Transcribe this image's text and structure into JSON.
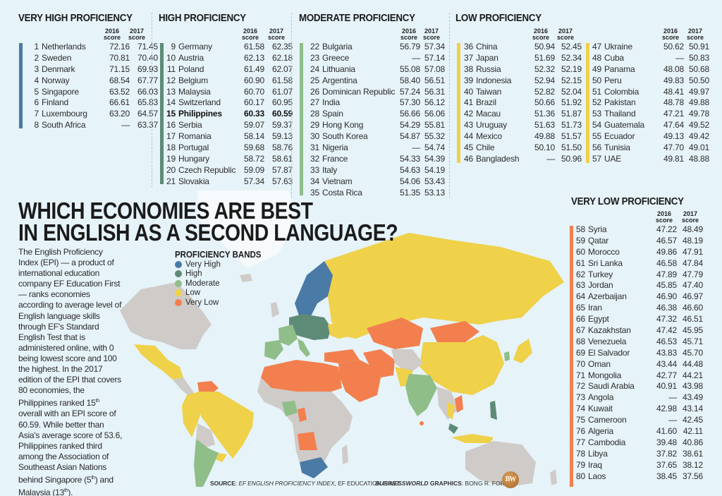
{
  "headline": {
    "line1": "WHICH ECONOMIES ARE BEST",
    "line2": "IN ENGLISH AS A SECOND LANGUAGE?"
  },
  "intro": {
    "p1": "The English Proficiency Index (EPI) — a product of international education company EF Education First — ranks economies according to average level of English language skills through EF's Standard English Test that is administered online, with 0 being lowest score and 100 the highest. In the 2017 edition of the EPI that covers 80 economies, the Philippines ranked 15",
    "sup1": "th",
    "p2": " overall with an EPI score of 60.59. While better than Asia's average score of 53.6, Philippines ranked third among the Association of Southeast Asian Nations behind Singapore (5",
    "sup2": "th",
    "p3": ") and Malaysia (13",
    "sup3": "th",
    "p4": ")."
  },
  "column_headers": {
    "y2016": "2016",
    "y2017": "2017",
    "score": "score"
  },
  "legend": {
    "title": "PROFICIENCY BANDS",
    "items": [
      {
        "label": "Very High",
        "color": "#4a7aa6"
      },
      {
        "label": "High",
        "color": "#5e8b77"
      },
      {
        "label": "Moderate",
        "color": "#8fbe88"
      },
      {
        "label": "Low",
        "color": "#efd14a"
      },
      {
        "label": "Very Low",
        "color": "#f37f4f"
      }
    ]
  },
  "colors": {
    "background": "#e6f3f9",
    "very_high": "#4a7aa6",
    "high": "#5e8b77",
    "moderate": "#8fbe88",
    "low": "#efd14a",
    "very_low": "#f37f4f",
    "no_data": "#cfcbc8"
  },
  "tiers": {
    "very_high": {
      "title": "VERY HIGH PROFICIENCY",
      "rows": [
        {
          "rank": "1",
          "name": "Netherlands",
          "s2016": "72.16",
          "s2017": "71.45"
        },
        {
          "rank": "2",
          "name": "Sweden",
          "s2016": "70.81",
          "s2017": "70.40"
        },
        {
          "rank": "3",
          "name": "Denmark",
          "s2016": "71.15",
          "s2017": "69.93"
        },
        {
          "rank": "4",
          "name": "Norway",
          "s2016": "68.54",
          "s2017": "67.77"
        },
        {
          "rank": "5",
          "name": "Singapore",
          "s2016": "63.52",
          "s2017": "66.03"
        },
        {
          "rank": "6",
          "name": "Finland",
          "s2016": "66.61",
          "s2017": "65.83"
        },
        {
          "rank": "7",
          "name": "Luxembourg",
          "s2016": "63.20",
          "s2017": "64.57"
        },
        {
          "rank": "8",
          "name": "South Africa",
          "s2016": "—",
          "s2017": "63.37"
        }
      ]
    },
    "high": {
      "title": "HIGH PROFICIENCY",
      "rows": [
        {
          "rank": "9",
          "name": "Germany",
          "s2016": "61.58",
          "s2017": "62.35"
        },
        {
          "rank": "10",
          "name": "Austria",
          "s2016": "62.13",
          "s2017": "62.18"
        },
        {
          "rank": "11",
          "name": "Poland",
          "s2016": "61.49",
          "s2017": "62.07"
        },
        {
          "rank": "12",
          "name": "Belgium",
          "s2016": "60.90",
          "s2017": "61.58"
        },
        {
          "rank": "13",
          "name": "Malaysia",
          "s2016": "60.70",
          "s2017": "61.07"
        },
        {
          "rank": "14",
          "name": "Switzerland",
          "s2016": "60.17",
          "s2017": "60.95"
        },
        {
          "rank": "15",
          "name": "Philippines",
          "s2016": "60.33",
          "s2017": "60.59",
          "highlight": true
        },
        {
          "rank": "16",
          "name": "Serbia",
          "s2016": "59.07",
          "s2017": "59.37"
        },
        {
          "rank": "17",
          "name": "Romania",
          "s2016": "58.14",
          "s2017": "59.13"
        },
        {
          "rank": "18",
          "name": "Portugal",
          "s2016": "59.68",
          "s2017": "58.76"
        },
        {
          "rank": "19",
          "name": "Hungary",
          "s2016": "58.72",
          "s2017": "58.61"
        },
        {
          "rank": "20",
          "name": "Czech Republic",
          "s2016": "59.09",
          "s2017": "57.87"
        },
        {
          "rank": "21",
          "name": "Slovakia",
          "s2016": "57.34",
          "s2017": "57.63"
        }
      ]
    },
    "moderate": {
      "title": "MODERATE PROFICIENCY",
      "rows": [
        {
          "rank": "22",
          "name": "Bulgaria",
          "s2016": "56.79",
          "s2017": "57.34"
        },
        {
          "rank": "23",
          "name": "Greece",
          "s2016": "—",
          "s2017": "57.14"
        },
        {
          "rank": "24",
          "name": "Lithuania",
          "s2016": "55.08",
          "s2017": "57.08"
        },
        {
          "rank": "25",
          "name": "Argentina",
          "s2016": "58.40",
          "s2017": "56.51"
        },
        {
          "rank": "26",
          "name": "Dominican Republic",
          "s2016": "57.24",
          "s2017": "56.31"
        },
        {
          "rank": "27",
          "name": "India",
          "s2016": "57.30",
          "s2017": "56.12"
        },
        {
          "rank": "28",
          "name": "Spain",
          "s2016": "56.66",
          "s2017": "56.06"
        },
        {
          "rank": "29",
          "name": "Hong Kong",
          "s2016": "54.29",
          "s2017": "55.81"
        },
        {
          "rank": "30",
          "name": "South Korea",
          "s2016": "54.87",
          "s2017": "55.32"
        },
        {
          "rank": "31",
          "name": "Nigeria",
          "s2016": "—",
          "s2017": "54.74"
        },
        {
          "rank": "32",
          "name": "France",
          "s2016": "54.33",
          "s2017": "54.39"
        },
        {
          "rank": "33",
          "name": "Italy",
          "s2016": "54.63",
          "s2017": "54.19"
        },
        {
          "rank": "34",
          "name": "Vietnam",
          "s2016": "54.06",
          "s2017": "53.43"
        },
        {
          "rank": "35",
          "name": "Costa Rica",
          "s2016": "51.35",
          "s2017": "53.13"
        }
      ]
    },
    "low": {
      "title": "LOW PROFICIENCY",
      "rows_a": [
        {
          "rank": "36",
          "name": "China",
          "s2016": "50.94",
          "s2017": "52.45"
        },
        {
          "rank": "37",
          "name": "Japan",
          "s2016": "51.69",
          "s2017": "52.34"
        },
        {
          "rank": "38",
          "name": "Russia",
          "s2016": "52.32",
          "s2017": "52.19"
        },
        {
          "rank": "39",
          "name": "Indonesia",
          "s2016": "52.94",
          "s2017": "52.15"
        },
        {
          "rank": "40",
          "name": "Taiwan",
          "s2016": "52.82",
          "s2017": "52.04"
        },
        {
          "rank": "41",
          "name": "Brazil",
          "s2016": "50.66",
          "s2017": "51.92"
        },
        {
          "rank": "42",
          "name": "Macau",
          "s2016": "51.36",
          "s2017": "51.87"
        },
        {
          "rank": "43",
          "name": "Uruguay",
          "s2016": "51.63",
          "s2017": "51.73"
        },
        {
          "rank": "44",
          "name": "Mexico",
          "s2016": "49.88",
          "s2017": "51.57"
        },
        {
          "rank": "45",
          "name": "Chile",
          "s2016": "50.10",
          "s2017": "51.50"
        },
        {
          "rank": "46",
          "name": "Bangladesh",
          "s2016": "—",
          "s2017": "50.96"
        }
      ],
      "rows_b": [
        {
          "rank": "47",
          "name": "Ukraine",
          "s2016": "50.62",
          "s2017": "50.91"
        },
        {
          "rank": "48",
          "name": "Cuba",
          "s2016": "—",
          "s2017": "50.83"
        },
        {
          "rank": "49",
          "name": "Panama",
          "s2016": "48.08",
          "s2017": "50.68"
        },
        {
          "rank": "50",
          "name": "Peru",
          "s2016": "49.83",
          "s2017": "50.50"
        },
        {
          "rank": "51",
          "name": "Colombia",
          "s2016": "48.41",
          "s2017": "49.97"
        },
        {
          "rank": "52",
          "name": "Pakistan",
          "s2016": "48.78",
          "s2017": "49.88"
        },
        {
          "rank": "53",
          "name": "Thailand",
          "s2016": "47.21",
          "s2017": "49.78"
        },
        {
          "rank": "54",
          "name": "Guatemala",
          "s2016": "47.64",
          "s2017": "49.52"
        },
        {
          "rank": "55",
          "name": "Ecuador",
          "s2016": "49.13",
          "s2017": "49.42"
        },
        {
          "rank": "56",
          "name": "Tunisia",
          "s2016": "47.70",
          "s2017": "49.01"
        },
        {
          "rank": "57",
          "name": "UAE",
          "s2016": "49.81",
          "s2017": "48.88"
        }
      ]
    },
    "very_low": {
      "title": "VERY LOW PROFICIENCY",
      "rows": [
        {
          "rank": "58",
          "name": "Syria",
          "s2016": "47.22",
          "s2017": "48.49"
        },
        {
          "rank": "59",
          "name": "Qatar",
          "s2016": "46.57",
          "s2017": "48.19"
        },
        {
          "rank": "60",
          "name": "Morocco",
          "s2016": "49.86",
          "s2017": "47.91"
        },
        {
          "rank": "61",
          "name": "Sri Lanka",
          "s2016": "46.58",
          "s2017": "47.84"
        },
        {
          "rank": "62",
          "name": "Turkey",
          "s2016": "47.89",
          "s2017": "47.79"
        },
        {
          "rank": "63",
          "name": "Jordan",
          "s2016": "45.85",
          "s2017": "47.40"
        },
        {
          "rank": "64",
          "name": "Azerbaijan",
          "s2016": "46.90",
          "s2017": "46.97"
        },
        {
          "rank": "65",
          "name": "Iran",
          "s2016": "46.38",
          "s2017": "46.60"
        },
        {
          "rank": "66",
          "name": "Egypt",
          "s2016": "47.32",
          "s2017": "46.51"
        },
        {
          "rank": "67",
          "name": "Kazakhstan",
          "s2016": "47.42",
          "s2017": "45.95"
        },
        {
          "rank": "68",
          "name": "Venezuela",
          "s2016": "46.53",
          "s2017": "45.71"
        },
        {
          "rank": "69",
          "name": "El Salvador",
          "s2016": "43.83",
          "s2017": "45.70"
        },
        {
          "rank": "70",
          "name": "Oman",
          "s2016": "43.44",
          "s2017": "44.48"
        },
        {
          "rank": "71",
          "name": "Mongolia",
          "s2016": "42.77",
          "s2017": "44.21"
        },
        {
          "rank": "72",
          "name": "Saudi Arabia",
          "s2016": "40.91",
          "s2017": "43.98"
        },
        {
          "rank": "73",
          "name": "Angola",
          "s2016": "—",
          "s2017": "43.49"
        },
        {
          "rank": "74",
          "name": "Kuwait",
          "s2016": "42.98",
          "s2017": "43.14"
        },
        {
          "rank": "75",
          "name": "Cameroon",
          "s2016": "—",
          "s2017": "42.45"
        },
        {
          "rank": "76",
          "name": "Algeria",
          "s2016": "41.60",
          "s2017": "42.11"
        },
        {
          "rank": "77",
          "name": "Cambodia",
          "s2016": "39.48",
          "s2017": "40.86"
        },
        {
          "rank": "78",
          "name": "Libya",
          "s2016": "37.82",
          "s2017": "38.61"
        },
        {
          "rank": "79",
          "name": "Iraq",
          "s2016": "37.65",
          "s2017": "38.12"
        },
        {
          "rank": "80",
          "name": "Laos",
          "s2016": "38.45",
          "s2017": "37.56"
        }
      ]
    }
  },
  "footer": {
    "source_label": "SOURCE",
    "source_italic": "EF ENGLISH PROFICIENCY INDEX",
    "source_rest": ", EF EDUCATION FIRST",
    "credit_brand": "BUSINESSWORLD",
    "credit_label": " GRAPHICS",
    "credit_name": ": BONG R. FORTIN",
    "logo_text": "BW"
  }
}
